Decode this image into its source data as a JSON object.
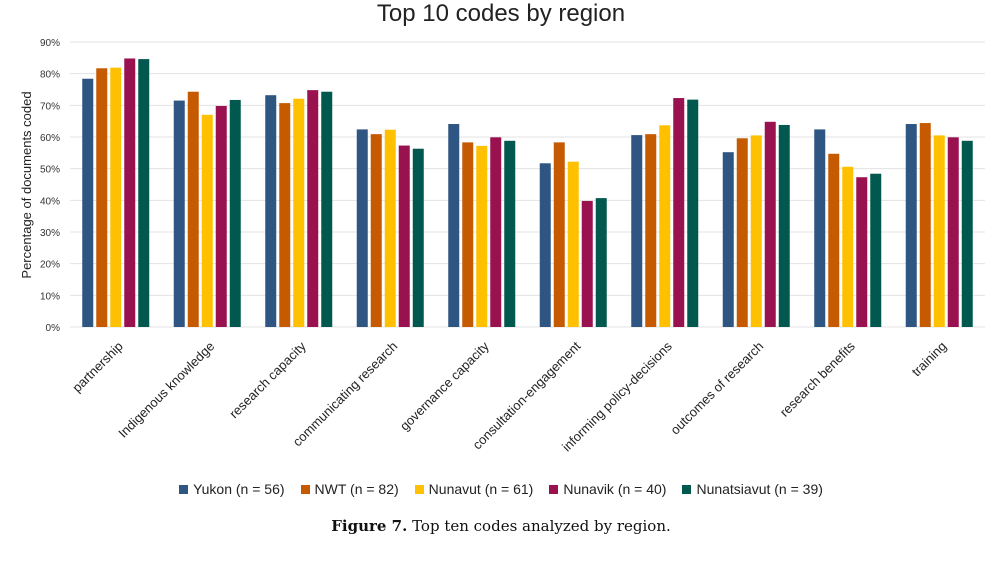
{
  "chart_data": {
    "type": "bar",
    "title": "Top 10 codes by region",
    "xlabel": "",
    "ylabel": "Percentage of documents coded",
    "ylim": [
      0,
      90
    ],
    "yticks": [
      "0%",
      "10%",
      "20%",
      "30%",
      "40%",
      "50%",
      "60%",
      "70%",
      "80%",
      "90%"
    ],
    "grid": true,
    "legend_position": "bottom",
    "categories": [
      "partnership",
      "Indigenous knowledge",
      "research capacity",
      "communicating research",
      "governance capacity",
      "consultation-engagement",
      "informing policy-decisions",
      "outcomes of research",
      "research benefits",
      "training"
    ],
    "series": [
      {
        "name": "Yukon (n = 56)",
        "color": "#2F5583",
        "values": [
          78.4,
          71.5,
          73.2,
          62.4,
          64.1,
          51.7,
          60.6,
          55.2,
          62.4,
          64.1
        ]
      },
      {
        "name": "NWT (n = 82)",
        "color": "#C55A00",
        "values": [
          81.7,
          74.3,
          70.7,
          60.9,
          58.3,
          58.3,
          60.9,
          59.6,
          54.7,
          64.4
        ]
      },
      {
        "name": "Nunavut (n = 61)",
        "color": "#FFC000",
        "values": [
          81.9,
          67.0,
          72.1,
          62.3,
          57.2,
          52.2,
          63.7,
          60.5,
          50.6,
          60.5
        ]
      },
      {
        "name": "Nunavik (n = 40)",
        "color": "#9A1150",
        "values": [
          84.8,
          69.8,
          74.8,
          57.3,
          59.9,
          39.8,
          72.3,
          64.8,
          47.3,
          59.9
        ]
      },
      {
        "name": "Nunatsiavut (n = 39)",
        "color": "#00584F",
        "values": [
          84.6,
          71.7,
          74.3,
          56.3,
          58.8,
          40.7,
          71.8,
          63.8,
          48.4,
          58.8
        ]
      }
    ]
  },
  "caption": {
    "label": "Figure 7.",
    "text": " Top ten codes analyzed by region."
  }
}
